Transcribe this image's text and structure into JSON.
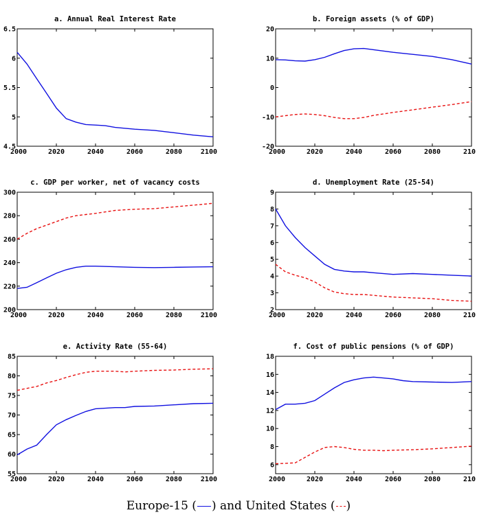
{
  "chart_data": [
    {
      "type": "line",
      "title": "a. Annual Real Interest Rate",
      "xlim": [
        2000,
        2100
      ],
      "ylim": [
        4.5,
        6.5
      ],
      "xticks": [
        "2000",
        "2020",
        "2040",
        "2060",
        "2080",
        "2100"
      ],
      "yticks": [
        "4.5",
        "5",
        "5.5",
        "6",
        "6.5"
      ],
      "grid": false,
      "series": [
        {
          "key": "eu",
          "x": [
            2000,
            2005,
            2010,
            2015,
            2020,
            2025,
            2030,
            2035,
            2040,
            2045,
            2050,
            2060,
            2070,
            2080,
            2090,
            2100
          ],
          "values": [
            6.1,
            5.9,
            5.65,
            5.4,
            5.15,
            4.97,
            4.91,
            4.87,
            4.86,
            4.85,
            4.82,
            4.79,
            4.77,
            4.73,
            4.69,
            4.66
          ]
        }
      ]
    },
    {
      "type": "line",
      "title": "b. Foreign assets (% of GDP)",
      "xlim": [
        2000,
        2100
      ],
      "ylim": [
        -20,
        20
      ],
      "xticks": [
        "2000",
        "2020",
        "2040",
        "2060",
        "2080",
        "210"
      ],
      "yticks": [
        "-20",
        "-10",
        "0",
        "10",
        "20"
      ],
      "grid": false,
      "series": [
        {
          "key": "eu",
          "x": [
            2000,
            2005,
            2010,
            2015,
            2020,
            2025,
            2030,
            2035,
            2040,
            2045,
            2050,
            2060,
            2070,
            2080,
            2090,
            2100
          ],
          "values": [
            9.5,
            9.4,
            9.1,
            9.0,
            9.5,
            10.3,
            11.5,
            12.6,
            13.2,
            13.3,
            12.9,
            12.0,
            11.3,
            10.6,
            9.5,
            8.0
          ]
        },
        {
          "key": "us",
          "x": [
            2000,
            2005,
            2010,
            2015,
            2020,
            2025,
            2030,
            2035,
            2040,
            2045,
            2050,
            2060,
            2070,
            2080,
            2090,
            2100
          ],
          "values": [
            -10.0,
            -9.6,
            -9.2,
            -9.0,
            -9.2,
            -9.6,
            -10.2,
            -10.6,
            -10.6,
            -10.2,
            -9.5,
            -8.5,
            -7.6,
            -6.7,
            -5.8,
            -4.8
          ]
        }
      ]
    },
    {
      "type": "line",
      "title": "c. GDP per worker, net of vacancy costs",
      "xlim": [
        2000,
        2100
      ],
      "ylim": [
        200,
        300
      ],
      "xticks": [
        "2000",
        "2020",
        "2040",
        "2060",
        "2080",
        "2100"
      ],
      "yticks": [
        "200",
        "220",
        "240",
        "260",
        "280",
        "300"
      ],
      "grid": false,
      "series": [
        {
          "key": "eu",
          "x": [
            2000,
            2005,
            2010,
            2015,
            2020,
            2025,
            2030,
            2035,
            2040,
            2050,
            2060,
            2070,
            2080,
            2090,
            2100
          ],
          "values": [
            218,
            219,
            223,
            227,
            231,
            234,
            236,
            237,
            237,
            236.5,
            236,
            235.8,
            236,
            236.3,
            236.5
          ]
        },
        {
          "key": "us",
          "x": [
            2000,
            2005,
            2010,
            2015,
            2020,
            2025,
            2030,
            2035,
            2040,
            2050,
            2060,
            2070,
            2080,
            2090,
            2100
          ],
          "values": [
            260,
            265,
            269,
            272,
            275,
            278,
            280,
            281,
            282,
            284.5,
            285.5,
            286,
            287.5,
            289,
            290.5
          ]
        }
      ]
    },
    {
      "type": "line",
      "title": "d. Unemployment Rate (25-54)",
      "xlim": [
        2000,
        2100
      ],
      "ylim": [
        2,
        9
      ],
      "xticks": [
        "2000",
        "2020",
        "2040",
        "2060",
        "2080",
        "210"
      ],
      "yticks": [
        "2",
        "3",
        "4",
        "5",
        "6",
        "7",
        "8",
        "9"
      ],
      "grid": false,
      "series": [
        {
          "key": "eu",
          "x": [
            2000,
            2005,
            2010,
            2015,
            2020,
            2025,
            2030,
            2035,
            2040,
            2045,
            2050,
            2060,
            2070,
            2080,
            2090,
            2100
          ],
          "values": [
            8.0,
            7.0,
            6.3,
            5.7,
            5.2,
            4.7,
            4.4,
            4.3,
            4.25,
            4.25,
            4.2,
            4.1,
            4.15,
            4.1,
            4.05,
            4.0
          ]
        },
        {
          "key": "us",
          "x": [
            2000,
            2005,
            2010,
            2015,
            2020,
            2025,
            2030,
            2035,
            2040,
            2045,
            2050,
            2060,
            2070,
            2080,
            2090,
            2100
          ],
          "values": [
            4.7,
            4.25,
            4.05,
            3.9,
            3.65,
            3.3,
            3.05,
            2.95,
            2.9,
            2.9,
            2.85,
            2.75,
            2.7,
            2.65,
            2.55,
            2.5
          ]
        }
      ]
    },
    {
      "type": "line",
      "title": "e. Activity Rate (55-64)",
      "xlim": [
        2000,
        2100
      ],
      "ylim": [
        55,
        85
      ],
      "xticks": [
        "2000",
        "2020",
        "2040",
        "2060",
        "2080",
        "2100"
      ],
      "yticks": [
        "55",
        "60",
        "65",
        "70",
        "75",
        "80",
        "85"
      ],
      "grid": false,
      "series": [
        {
          "key": "eu",
          "x": [
            2000,
            2005,
            2010,
            2015,
            2020,
            2025,
            2030,
            2035,
            2040,
            2050,
            2055,
            2060,
            2070,
            2080,
            2090,
            2100
          ],
          "values": [
            59.8,
            61.3,
            62.3,
            65.0,
            67.5,
            68.8,
            69.9,
            70.9,
            71.6,
            71.9,
            71.9,
            72.2,
            72.3,
            72.6,
            72.9,
            73.0
          ]
        },
        {
          "key": "us",
          "x": [
            2000,
            2005,
            2010,
            2015,
            2020,
            2025,
            2030,
            2035,
            2040,
            2050,
            2055,
            2060,
            2070,
            2080,
            2090,
            2100
          ],
          "values": [
            76.3,
            76.8,
            77.3,
            78.2,
            78.8,
            79.6,
            80.3,
            80.9,
            81.2,
            81.2,
            81.0,
            81.2,
            81.4,
            81.5,
            81.7,
            81.8
          ]
        }
      ]
    },
    {
      "type": "line",
      "title": "f. Cost of public pensions (% of GDP)",
      "xlim": [
        2000,
        2100
      ],
      "ylim": [
        5,
        18
      ],
      "xticks": [
        "2000",
        "2020",
        "2040",
        "2060",
        "2080",
        "210"
      ],
      "yticks": [
        "6",
        "8",
        "10",
        "12",
        "14",
        "16",
        "18"
      ],
      "grid": false,
      "series": [
        {
          "key": "eu",
          "x": [
            2000,
            2005,
            2010,
            2015,
            2020,
            2025,
            2030,
            2035,
            2040,
            2045,
            2050,
            2055,
            2060,
            2065,
            2070,
            2080,
            2090,
            2100
          ],
          "values": [
            12.1,
            12.7,
            12.7,
            12.8,
            13.1,
            13.8,
            14.5,
            15.1,
            15.4,
            15.6,
            15.7,
            15.6,
            15.5,
            15.3,
            15.2,
            15.15,
            15.1,
            15.2
          ]
        },
        {
          "key": "us",
          "x": [
            2000,
            2005,
            2010,
            2015,
            2020,
            2025,
            2030,
            2035,
            2040,
            2045,
            2050,
            2055,
            2060,
            2070,
            2080,
            2090,
            2100
          ],
          "values": [
            6.1,
            6.15,
            6.2,
            6.8,
            7.4,
            7.9,
            8.0,
            7.9,
            7.7,
            7.6,
            7.6,
            7.55,
            7.6,
            7.65,
            7.75,
            7.9,
            8.05
          ]
        }
      ]
    }
  ],
  "colors": {
    "eu": "#1010e0",
    "us": "#e81010"
  },
  "legend": {
    "placement": "bottom-center",
    "eu_label": "Europe-15 (",
    "eu_close": ") and United States (",
    "us_close": ")"
  }
}
